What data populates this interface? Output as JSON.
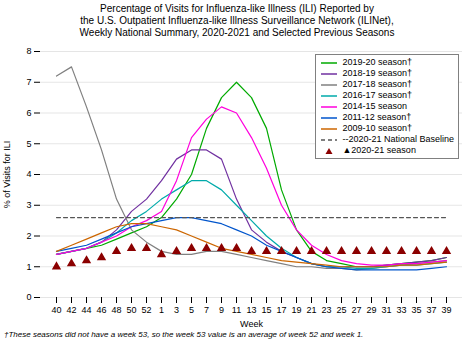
{
  "chart_data": {
    "type": "line",
    "title": "Percentage of Visits for Influenza-like Illness (ILI) Reported by\nthe U.S. Outpatient Influenza-like Illness Surveillance Network (ILINet),\nWeekly National Summary, 2020-2021 and Selected Previous Seasons",
    "xlabel": "Week",
    "ylabel": "% of Visits for ILI",
    "footnote": "†These seasons did not have a week 53, so the week 53 value is an average of week 52 and week 1.",
    "categories": [
      "40",
      "42",
      "44",
      "46",
      "48",
      "50",
      "52",
      "1",
      "3",
      "5",
      "7",
      "9",
      "11",
      "13",
      "15",
      "17",
      "19",
      "21",
      "23",
      "25",
      "27",
      "29",
      "31",
      "33",
      "35",
      "37",
      "39"
    ],
    "series": [
      {
        "name": "2019-20 season†",
        "color": "#00aa00",
        "type": "line",
        "values": [
          1.4,
          1.5,
          1.6,
          1.7,
          1.9,
          2.1,
          2.3,
          2.6,
          3.2,
          4.0,
          5.5,
          6.5,
          7.0,
          6.5,
          5.5,
          3.5,
          2.2,
          1.5,
          1.2,
          1.1,
          1.0,
          1.0,
          1.05,
          1.1,
          1.15,
          1.2,
          1.3
        ]
      },
      {
        "name": "2018-19 season†",
        "color": "#7030a0",
        "type": "line",
        "values": [
          1.4,
          1.5,
          1.6,
          1.8,
          2.2,
          2.8,
          3.2,
          3.8,
          4.5,
          4.8,
          4.8,
          4.5,
          3.2,
          2.2,
          1.8,
          1.5,
          1.3,
          1.1,
          1.0,
          1.0,
          1.0,
          1.0,
          1.05,
          1.1,
          1.15,
          1.2,
          1.3
        ]
      },
      {
        "name": "2017-18 season†",
        "color": "#808080",
        "type": "line",
        "values": [
          7.2,
          7.5,
          6.2,
          4.8,
          3.2,
          2.2,
          1.8,
          1.5,
          1.4,
          1.4,
          1.5,
          1.5,
          1.4,
          1.3,
          1.2,
          1.1,
          1.0,
          1.0,
          0.95,
          0.95,
          0.9,
          0.95,
          1.0,
          1.05,
          1.1,
          1.15,
          1.2
        ]
      },
      {
        "name": "2016-17 season†",
        "color": "#00aaaa",
        "type": "line",
        "values": [
          1.4,
          1.5,
          1.6,
          1.8,
          2.1,
          2.5,
          2.8,
          3.2,
          3.5,
          3.8,
          3.8,
          3.5,
          3.0,
          2.5,
          2.0,
          1.6,
          1.3,
          1.1,
          1.0,
          1.0,
          0.95,
          0.95,
          1.0,
          1.05,
          1.05,
          1.1,
          1.15
        ]
      },
      {
        "name": "2014-15 season",
        "color": "#ff00dd",
        "type": "line",
        "values": [
          1.4,
          1.5,
          1.6,
          1.8,
          2.0,
          2.3,
          2.5,
          2.8,
          3.8,
          5.2,
          5.8,
          6.2,
          6.0,
          5.2,
          4.2,
          3.0,
          2.2,
          1.7,
          1.4,
          1.2,
          1.1,
          1.05,
          1.05,
          1.1,
          1.1,
          1.15,
          1.2
        ]
      },
      {
        "name": "2011-12 season†",
        "color": "#0055cc",
        "type": "line",
        "values": [
          1.5,
          1.6,
          1.7,
          1.9,
          2.1,
          2.3,
          2.4,
          2.5,
          2.6,
          2.6,
          2.5,
          2.4,
          2.2,
          2.0,
          1.7,
          1.5,
          1.3,
          1.1,
          1.0,
          0.95,
          0.9,
          0.9,
          0.9,
          0.9,
          0.9,
          0.95,
          1.0
        ]
      },
      {
        "name": "2009-10 season†",
        "color": "#cc6600",
        "type": "line",
        "values": [
          1.5,
          1.7,
          1.9,
          2.1,
          2.3,
          2.4,
          2.4,
          2.3,
          2.2,
          2.0,
          1.8,
          1.6,
          1.5,
          1.4,
          1.3,
          1.2,
          1.15,
          1.1,
          1.05,
          1.0,
          1.0,
          1.0,
          1.0,
          1.05,
          1.05,
          1.1,
          1.15
        ]
      },
      {
        "name": "--2020-21 National Baseline",
        "color": "#555555",
        "type": "line",
        "line_style": "dashed",
        "values": [
          2.6,
          2.6,
          2.6,
          2.6,
          2.6,
          2.6,
          2.6,
          2.6,
          2.6,
          2.6,
          2.6,
          2.6,
          2.6,
          2.6,
          2.6,
          2.6,
          2.6,
          2.6,
          2.6,
          2.6,
          2.6,
          2.6,
          2.6,
          2.6,
          2.6,
          2.6,
          2.6
        ]
      },
      {
        "name": "▲2020-21 season",
        "color": "#8b0000",
        "type": "scatter",
        "marker": "triangle",
        "values": [
          1.0,
          1.1,
          1.2,
          1.3,
          1.5,
          1.6,
          1.6,
          1.4,
          1.5,
          1.6,
          1.6,
          1.6,
          1.6,
          1.5,
          1.5,
          1.5,
          1.5,
          1.5,
          1.5,
          1.5,
          1.5,
          1.5,
          1.5,
          1.5,
          1.5,
          1.5,
          1.5
        ]
      }
    ],
    "ylim": [
      0,
      8
    ],
    "yticks": [
      0,
      1,
      2,
      3,
      4,
      5,
      6,
      7,
      8
    ],
    "grid": true,
    "legend": "upper right"
  }
}
